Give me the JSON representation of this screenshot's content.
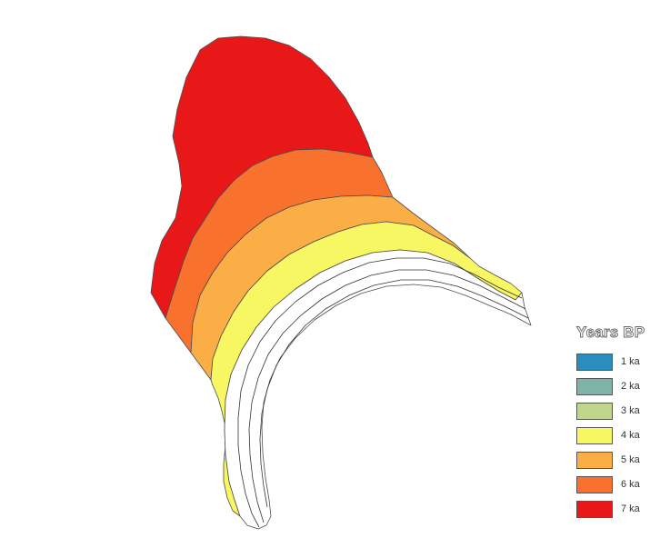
{
  "legend": {
    "title": "Years BP",
    "items": [
      {
        "label": "1 ka",
        "color": "#2b8cbe"
      },
      {
        "label": "2 ka",
        "color": "#80b3a8"
      },
      {
        "label": "3 ka",
        "color": "#bfd68c"
      },
      {
        "label": "4 ka",
        "color": "#f7f763"
      },
      {
        "label": "5 ka",
        "color": "#fbae45"
      },
      {
        "label": "6 ka",
        "color": "#f8712d"
      },
      {
        "label": "7 ka",
        "color": "#e81818"
      }
    ]
  },
  "map": {
    "empty_fill": "#ffffff",
    "boundary_color": "#4d4d4d"
  }
}
